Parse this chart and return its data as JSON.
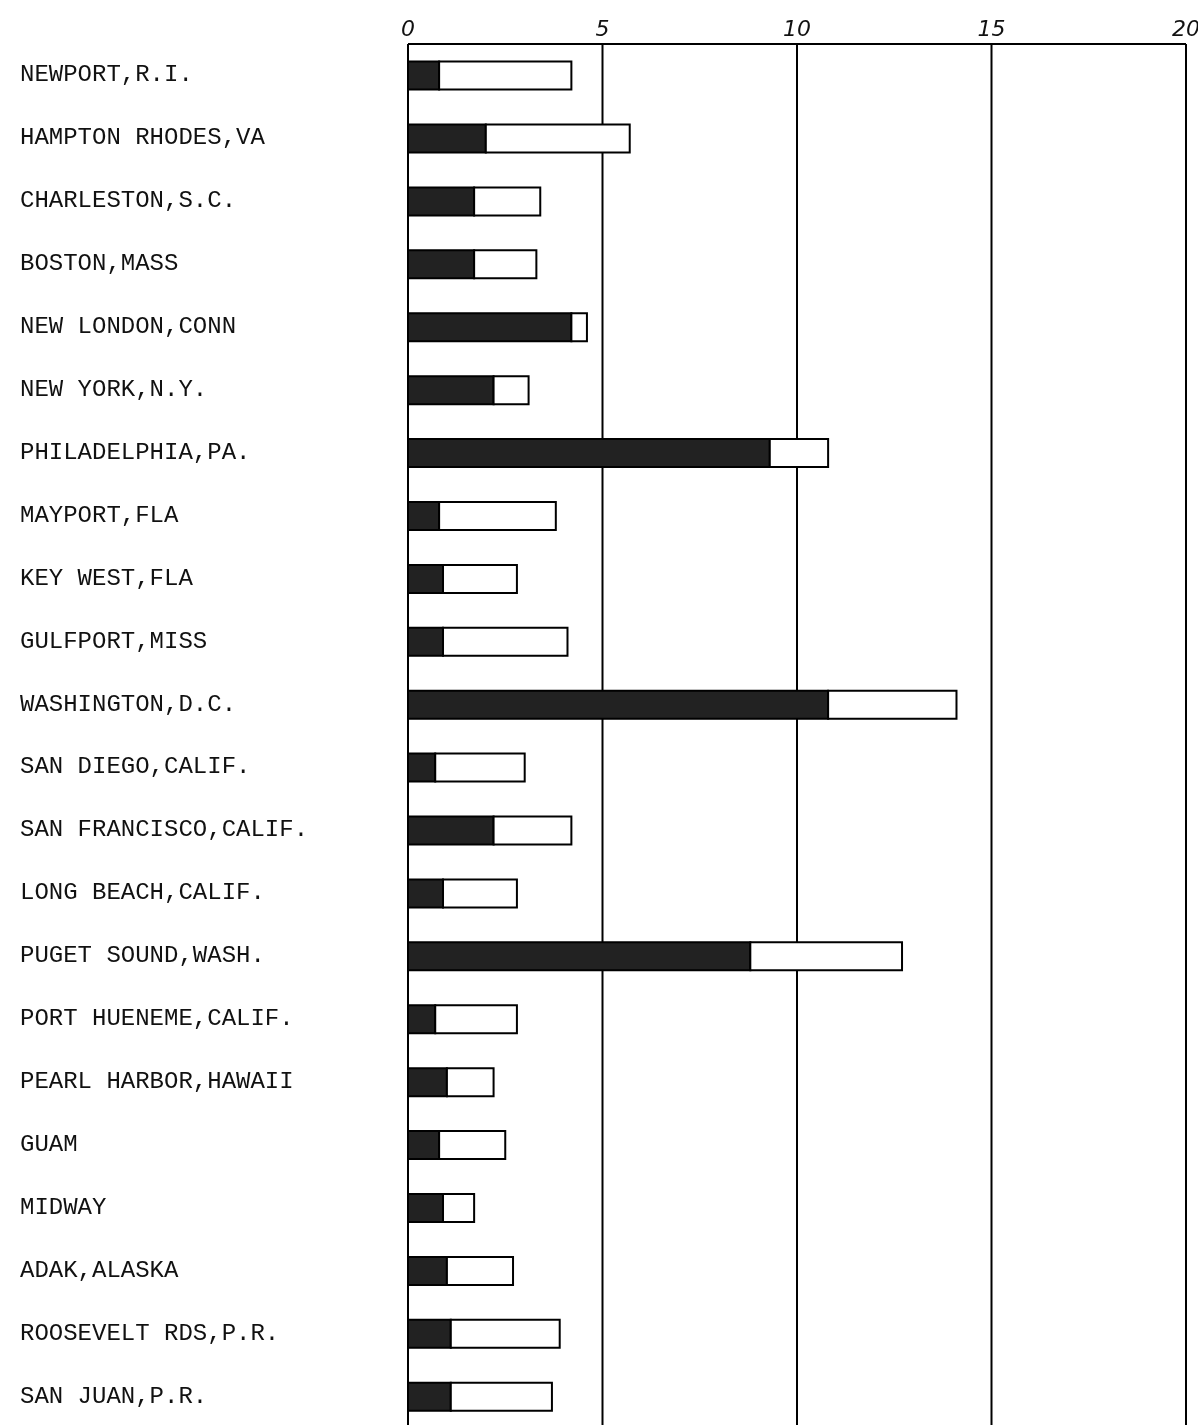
{
  "chart_data": {
    "type": "bar",
    "orientation": "horizontal",
    "stacked": true,
    "categories": [
      "NEWPORT,R.I.",
      "HAMPTON RHODES,VA",
      "CHARLESTON,S.C.",
      "BOSTON,MASS",
      "NEW LONDON,CONN",
      "NEW YORK,N.Y.",
      "PHILADELPHIA,PA.",
      "MAYPORT,FLA",
      "KEY WEST,FLA",
      "GULFPORT,MISS",
      "WASHINGTON,D.C.",
      "SAN DIEGO,CALIF.",
      "SAN FRANCISCO,CALIF.",
      "LONG BEACH,CALIF.",
      "PUGET SOUND,WASH.",
      "PORT HUENEME,CALIF.",
      "PEARL HARBOR,HAWAII",
      "GUAM",
      "MIDWAY",
      "ADAK,ALASKA",
      "ROOSEVELT RDS,P.R.",
      "SAN JUAN,P.R."
    ],
    "series": [
      {
        "color": "#222222",
        "values": [
          0.8,
          2.0,
          1.7,
          1.7,
          4.2,
          2.2,
          9.3,
          0.8,
          0.9,
          0.9,
          10.8,
          0.7,
          2.2,
          0.9,
          8.8,
          0.7,
          1.0,
          0.8,
          0.9,
          1.0,
          1.1,
          1.1
        ]
      },
      {
        "color": "#ffffff",
        "values": [
          3.4,
          3.7,
          1.7,
          1.6,
          0.4,
          0.9,
          1.5,
          3.0,
          1.9,
          3.2,
          3.3,
          2.3,
          2.0,
          1.9,
          3.9,
          2.1,
          1.2,
          1.7,
          0.8,
          1.7,
          2.8,
          2.6
        ]
      }
    ],
    "xlim": [
      0,
      20
    ],
    "xticks": [
      0,
      5,
      10,
      15,
      20
    ],
    "grid": "x",
    "legend": false
  }
}
